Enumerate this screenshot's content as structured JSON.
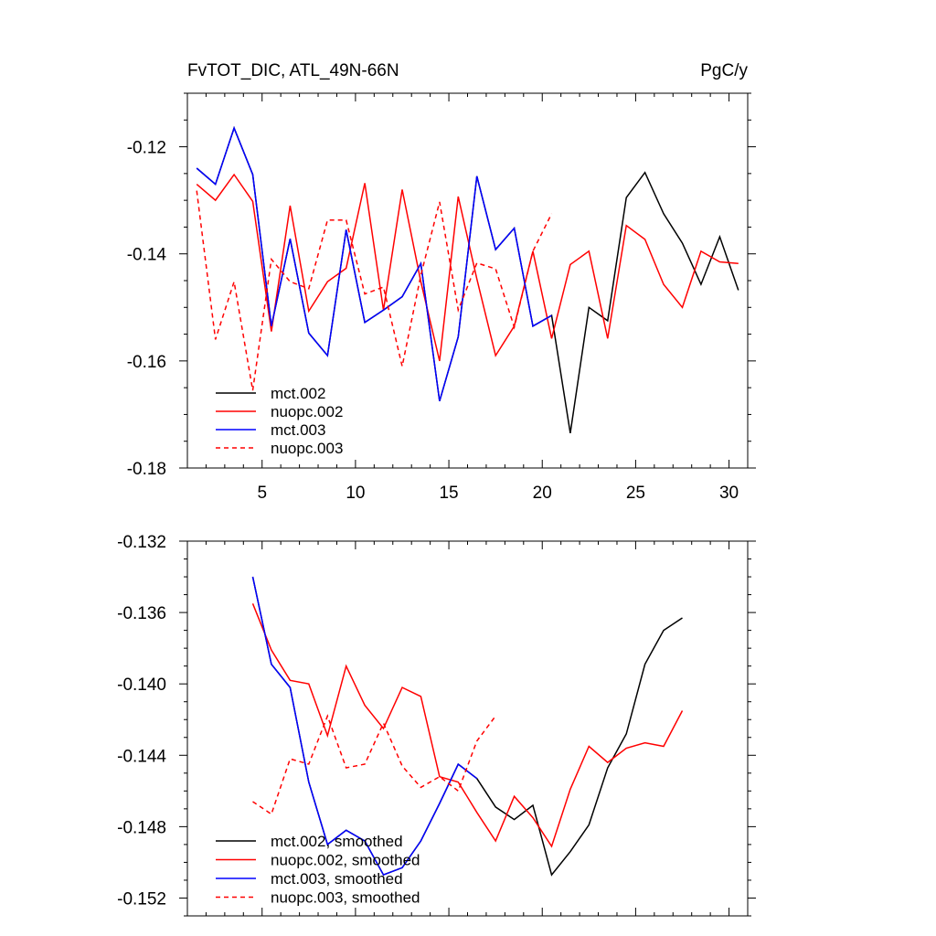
{
  "chart_data": [
    {
      "type": "line",
      "title": "FvTOT_DIC, ATL_49N-66N",
      "units": "PgC/y",
      "x_ticks": [
        5,
        10,
        15,
        20,
        25,
        30
      ],
      "y_ticks": [
        -0.12,
        -0.14,
        -0.16,
        -0.18
      ],
      "y_tick_labels": [
        "-0.12",
        "-0.14",
        "-0.16",
        "-0.18"
      ],
      "xlim": [
        1,
        31
      ],
      "ylim": [
        -0.18,
        -0.11
      ],
      "legend": "bottom-left",
      "series": [
        {
          "name": "mct.002",
          "color": "#000000",
          "dash": "solid",
          "x": [
            1.5,
            2.5,
            3.5,
            4.5,
            5.5,
            6.5,
            7.5,
            8.5,
            9.5,
            10.5,
            11.5,
            12.5,
            13.5,
            14.5,
            15.5,
            16.5,
            17.5,
            18.5,
            19.5,
            20.5,
            21.5,
            22.5,
            23.5,
            24.5,
            25.5,
            26.5,
            27.5,
            28.5,
            29.5,
            30.5
          ],
          "y": [
            -0.124,
            -0.127,
            -0.1165,
            -0.1252,
            -0.1535,
            -0.1372,
            -0.1548,
            -0.159,
            -0.1355,
            -0.1528,
            -0.1505,
            -0.148,
            -0.1418,
            -0.1675,
            -0.1555,
            -0.1255,
            -0.1392,
            -0.1352,
            -0.1535,
            -0.1515,
            -0.1735,
            -0.15,
            -0.1525,
            -0.1295,
            -0.1248,
            -0.1325,
            -0.138,
            -0.1457,
            -0.1368,
            -0.1468
          ]
        },
        {
          "name": "nuopc.002",
          "color": "#ff0000",
          "dash": "solid",
          "x": [
            1.5,
            2.5,
            3.5,
            4.5,
            5.5,
            6.5,
            7.5,
            8.5,
            9.5,
            10.5,
            11.5,
            12.5,
            13.5,
            14.5,
            15.5,
            16.5,
            17.5,
            18.5,
            19.5,
            20.5,
            21.5,
            22.5,
            23.5,
            24.5,
            25.5,
            26.5,
            27.5,
            28.5,
            29.5,
            30.5
          ],
          "y": [
            -0.127,
            -0.13,
            -0.1252,
            -0.1302,
            -0.1545,
            -0.131,
            -0.1507,
            -0.1452,
            -0.1427,
            -0.1268,
            -0.1505,
            -0.128,
            -0.1452,
            -0.16,
            -0.1293,
            -0.1447,
            -0.159,
            -0.1535,
            -0.1395,
            -0.1558,
            -0.142,
            -0.1395,
            -0.1558,
            -0.1347,
            -0.1373,
            -0.1457,
            -0.15,
            -0.1395,
            -0.1415,
            -0.1418
          ]
        },
        {
          "name": "mct.003",
          "color": "#0000ff",
          "dash": "solid",
          "x": [
            1.5,
            2.5,
            3.5,
            4.5,
            5.5,
            6.5,
            7.5,
            8.5,
            9.5,
            10.5,
            11.5,
            12.5,
            13.5,
            14.5,
            15.5,
            16.5,
            17.5,
            18.5,
            19.5,
            20.5
          ],
          "y": [
            -0.124,
            -0.127,
            -0.1165,
            -0.1252,
            -0.1535,
            -0.1372,
            -0.1548,
            -0.159,
            -0.1355,
            -0.1528,
            -0.1505,
            -0.148,
            -0.1418,
            -0.1675,
            -0.1555,
            -0.1255,
            -0.1392,
            -0.1352,
            -0.1535,
            -0.1515
          ]
        },
        {
          "name": "nuopc.003",
          "color": "#ff0000",
          "dash": "dashed",
          "x": [
            1.5,
            2.5,
            3.5,
            4.5,
            5.5,
            6.5,
            7.5,
            8.5,
            9.5,
            10.5,
            11.5,
            12.5,
            13.5,
            14.5,
            15.5,
            16.5,
            17.5,
            18.5,
            19.5,
            20.5
          ],
          "y": [
            -0.1282,
            -0.156,
            -0.1452,
            -0.1655,
            -0.141,
            -0.1452,
            -0.1465,
            -0.1337,
            -0.1337,
            -0.1475,
            -0.1462,
            -0.161,
            -0.144,
            -0.1303,
            -0.1505,
            -0.1417,
            -0.1428,
            -0.1537,
            -0.1395,
            -0.1325
          ]
        }
      ]
    },
    {
      "type": "line",
      "title": "",
      "x_ticks": [
        5,
        10,
        15,
        20,
        25,
        30
      ],
      "y_ticks": [
        -0.132,
        -0.136,
        -0.14,
        -0.144,
        -0.148,
        -0.152
      ],
      "y_tick_labels": [
        "-0.132",
        "-0.136",
        "-0.140",
        "-0.144",
        "-0.148",
        "-0.152"
      ],
      "xlim": [
        1,
        31
      ],
      "ylim": [
        -0.153,
        -0.132
      ],
      "legend": "bottom-left",
      "series": [
        {
          "name": "mct.002, smoothed",
          "color": "#000000",
          "dash": "solid",
          "x": [
            4.5,
            5.5,
            6.5,
            7.5,
            8.5,
            9.5,
            10.5,
            11.5,
            12.5,
            13.5,
            14.5,
            15.5,
            16.5,
            17.5,
            18.5,
            19.5,
            20.5,
            21.5,
            22.5,
            23.5,
            24.5,
            25.5,
            26.5,
            27.5
          ],
          "y": [
            -0.134,
            -0.1389,
            -0.1402,
            -0.1455,
            -0.149,
            -0.1482,
            -0.1488,
            -0.1507,
            -0.1503,
            -0.1488,
            -0.1467,
            -0.1445,
            -0.1453,
            -0.1469,
            -0.1476,
            -0.1468,
            -0.1507,
            -0.1494,
            -0.1479,
            -0.1447,
            -0.1428,
            -0.1389,
            -0.137,
            -0.1363
          ]
        },
        {
          "name": "nuopc.002, smoothed",
          "color": "#ff0000",
          "dash": "solid",
          "x": [
            4.5,
            5.5,
            6.5,
            7.5,
            8.5,
            9.5,
            10.5,
            11.5,
            12.5,
            13.5,
            14.5,
            15.5,
            16.5,
            17.5,
            18.5,
            19.5,
            20.5,
            21.5,
            22.5,
            23.5,
            24.5,
            25.5,
            26.5,
            27.5
          ],
          "y": [
            -0.1355,
            -0.1381,
            -0.1398,
            -0.14,
            -0.1429,
            -0.139,
            -0.1412,
            -0.1425,
            -0.1402,
            -0.1407,
            -0.1452,
            -0.1455,
            -0.1472,
            -0.1488,
            -0.1463,
            -0.1475,
            -0.1491,
            -0.1459,
            -0.1435,
            -0.1444,
            -0.1436,
            -0.1433,
            -0.1435,
            -0.1415
          ]
        },
        {
          "name": "mct.003, smoothed",
          "color": "#0000ff",
          "dash": "solid",
          "x": [
            4.5,
            5.5,
            6.5,
            7.5,
            8.5,
            9.5,
            10.5,
            11.5,
            12.5,
            13.5,
            14.5,
            15.5,
            16.5
          ],
          "y": [
            -0.134,
            -0.1389,
            -0.1402,
            -0.1455,
            -0.149,
            -0.1482,
            -0.1488,
            -0.1507,
            -0.1503,
            -0.1488,
            -0.1467,
            -0.1445,
            -0.1453
          ]
        },
        {
          "name": "nuopc.003, smoothed",
          "color": "#ff0000",
          "dash": "dashed",
          "x": [
            4.5,
            5.5,
            6.5,
            7.5,
            8.5,
            9.5,
            10.5,
            11.5,
            12.5,
            13.5,
            14.5,
            15.5,
            16.5,
            17.5
          ],
          "y": [
            -0.1466,
            -0.1473,
            -0.1442,
            -0.1445,
            -0.1418,
            -0.1447,
            -0.1445,
            -0.1422,
            -0.1446,
            -0.1458,
            -0.1452,
            -0.146,
            -0.1432,
            -0.1418
          ]
        }
      ]
    }
  ]
}
